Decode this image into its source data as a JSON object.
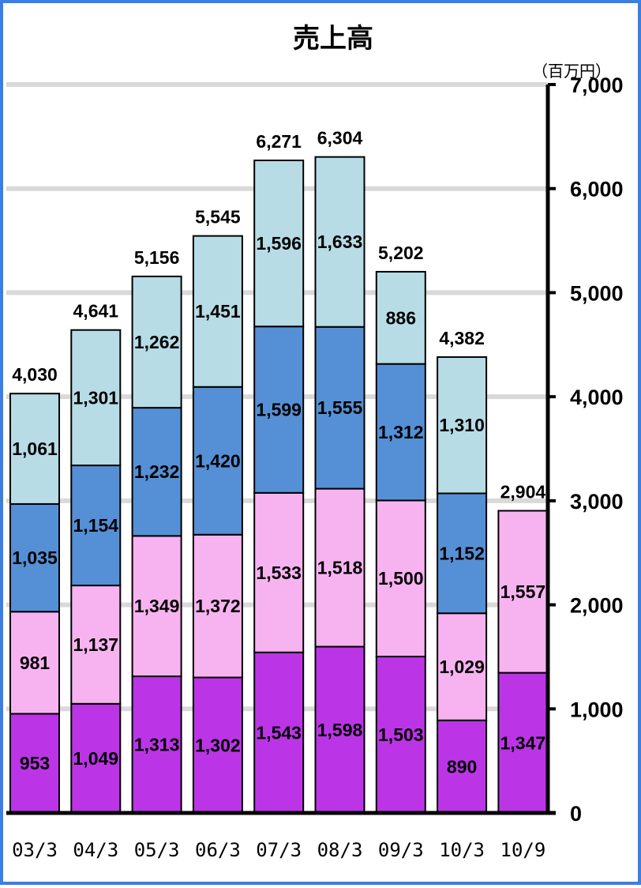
{
  "chart_data": {
    "type": "bar",
    "stacked": true,
    "title": "売上高",
    "unit": "（百万円）",
    "categories": [
      "03/3",
      "04/3",
      "05/3",
      "06/3",
      "07/3",
      "08/3",
      "09/3",
      "10/3",
      "10/9"
    ],
    "series": [
      {
        "color": "#bb35e6",
        "values": [
          953,
          1049,
          1313,
          1302,
          1543,
          1598,
          1503,
          890,
          1347
        ]
      },
      {
        "color": "#f7b3f0",
        "values": [
          981,
          1137,
          1349,
          1372,
          1533,
          1518,
          1500,
          1029,
          1557
        ]
      },
      {
        "color": "#5590d6",
        "values": [
          1035,
          1154,
          1232,
          1420,
          1599,
          1555,
          1312,
          1152,
          null
        ]
      },
      {
        "color": "#b7dce6",
        "values": [
          1061,
          1301,
          1262,
          1451,
          1596,
          1633,
          886,
          1310,
          null
        ]
      }
    ],
    "totals": [
      "4,030",
      "4,641",
      "5,156",
      "5,545",
      "6,271",
      "6,304",
      "5,202",
      "4,382",
      "2,904"
    ],
    "segment_labels": [
      [
        "953",
        "1,049",
        "1,313",
        "1,302",
        "1,543",
        "1,598",
        "1,503",
        "890",
        "1,347"
      ],
      [
        "981",
        "1,137",
        "1,349",
        "1,372",
        "1,533",
        "1,518",
        "1,500",
        "1,029",
        "1,557"
      ],
      [
        "1,035",
        "1,154",
        "1,232",
        "1,420",
        "1,599",
        "1,555",
        "1,312",
        "1,152",
        null
      ],
      [
        "1,061",
        "1,301",
        "1,262",
        "1,451",
        "1,596",
        "1,633",
        "886",
        "1,310",
        null
      ]
    ],
    "y_axis": {
      "position": "right",
      "ylim": [
        0,
        7000
      ],
      "ticks": [
        0,
        1000,
        2000,
        3000,
        4000,
        5000,
        6000,
        7000
      ],
      "tick_labels": [
        "0",
        "1,000",
        "2,000",
        "3,000",
        "4,000",
        "5,000",
        "6,000",
        "7,000"
      ]
    },
    "grid": true,
    "grid_color": "#d9d9d9",
    "frame_color": "#3b7fe0"
  }
}
